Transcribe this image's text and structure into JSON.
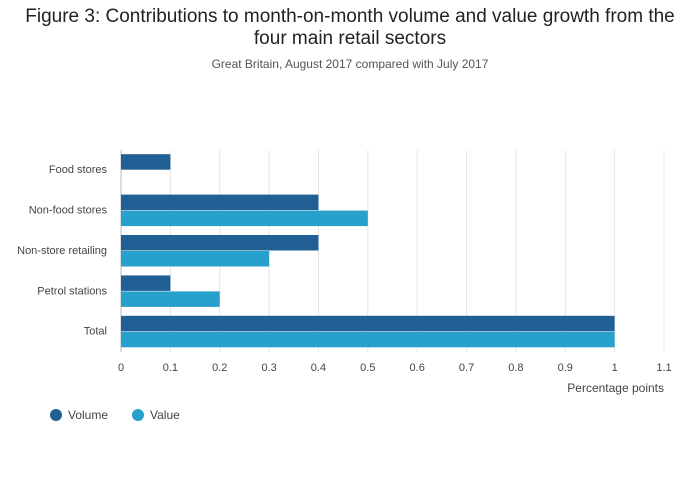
{
  "chart_data": {
    "type": "hbar",
    "title": "Figure 3: Contributions to month-on-month volume and value growth from the four main retail sectors",
    "subtitle": "Great Britain, August 2017 compared with July 2017",
    "categories": [
      "Food stores",
      "Non-food stores",
      "Non-store retailing",
      "Petrol stations",
      "Total"
    ],
    "series": [
      {
        "name": "Volume",
        "color": "#206095",
        "values": [
          0.1,
          0.4,
          0.4,
          0.1,
          1
        ]
      },
      {
        "name": "Value",
        "color": "#27a0cc",
        "values": [
          0,
          0.5,
          0.3,
          0.2,
          1
        ]
      }
    ],
    "x_label": "Percentage points",
    "xlim": [
      0,
      1.1
    ],
    "xticks": [
      0,
      0.1,
      0.2,
      0.3,
      0.4,
      0.5,
      0.6,
      0.7,
      0.8,
      0.9,
      1,
      1.1
    ],
    "grid": true,
    "legend": "bottom-left"
  }
}
